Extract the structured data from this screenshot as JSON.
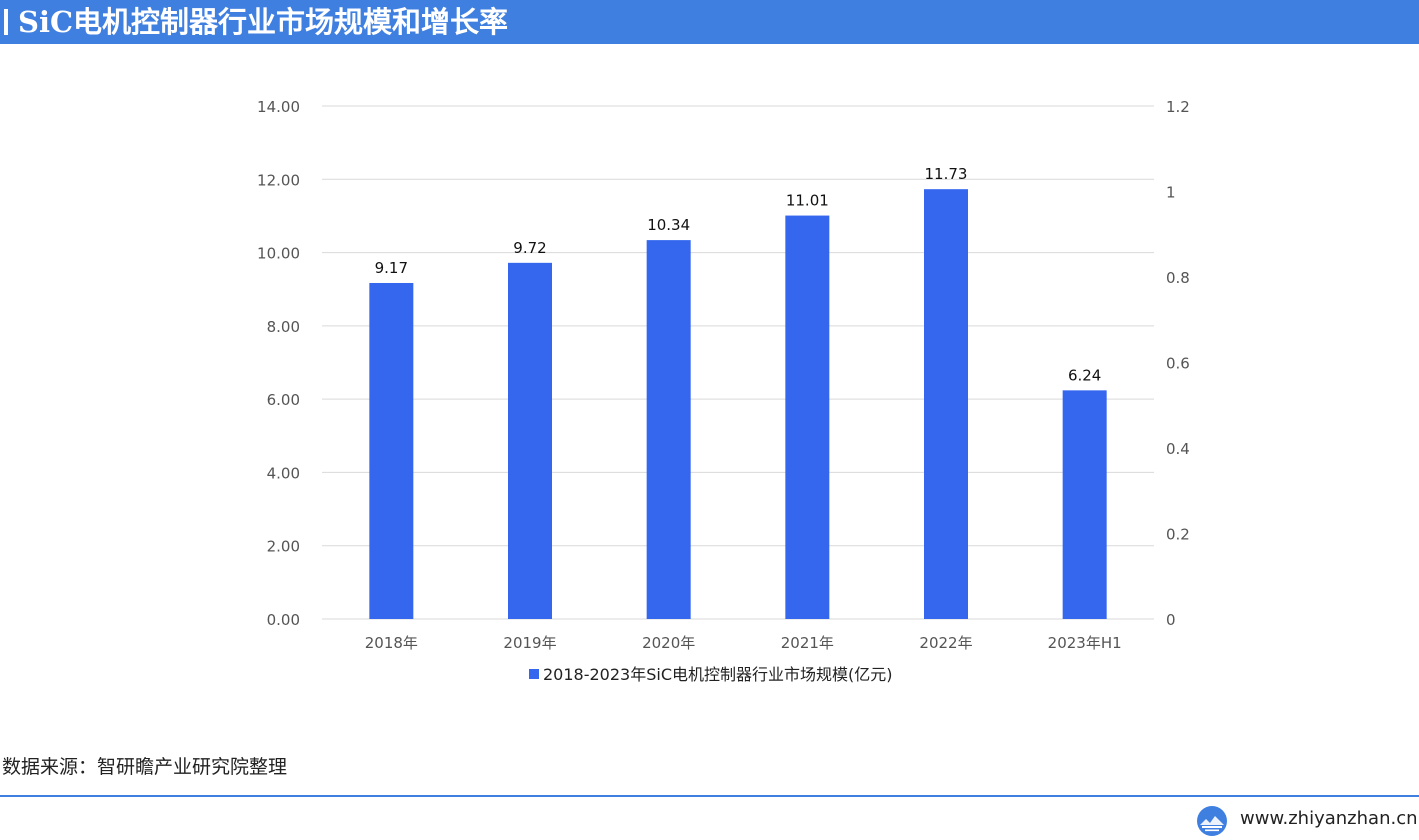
{
  "header": {
    "title": "SiC电机控制器行业市场规模和增长率"
  },
  "colors": {
    "brand": "#3f7fe0",
    "bar": "#3467ee",
    "gridline": "#d9d9d9",
    "axis_text": "#555555"
  },
  "chart_data": {
    "type": "bar",
    "title": "",
    "categories": [
      "2018年",
      "2019年",
      "2020年",
      "2021年",
      "2022年",
      "2023年H1"
    ],
    "series": [
      {
        "name": "2018-2023年SiC电机控制器行业市场规模(亿元)",
        "values": [
          9.17,
          9.72,
          10.34,
          11.01,
          11.73,
          6.24
        ],
        "value_labels": [
          "9.17",
          "9.72",
          "10.34",
          "11.01",
          "11.73",
          "6.24"
        ]
      }
    ],
    "ylim": [
      0,
      14
    ],
    "y_ticks": [
      "0.00",
      "2.00",
      "4.00",
      "6.00",
      "8.00",
      "10.00",
      "12.00",
      "14.00"
    ],
    "y2lim": [
      0,
      1.2
    ],
    "y2_ticks": [
      "0",
      "0.2",
      "0.4",
      "0.6",
      "0.8",
      "1",
      "1.2"
    ],
    "grid": true,
    "legend_position": "bottom"
  },
  "footer": {
    "source": "数据来源：智研瞻产业研究院整理",
    "website": "www.zhiyanzhan.cn",
    "logo_icon": "globe-icon"
  }
}
